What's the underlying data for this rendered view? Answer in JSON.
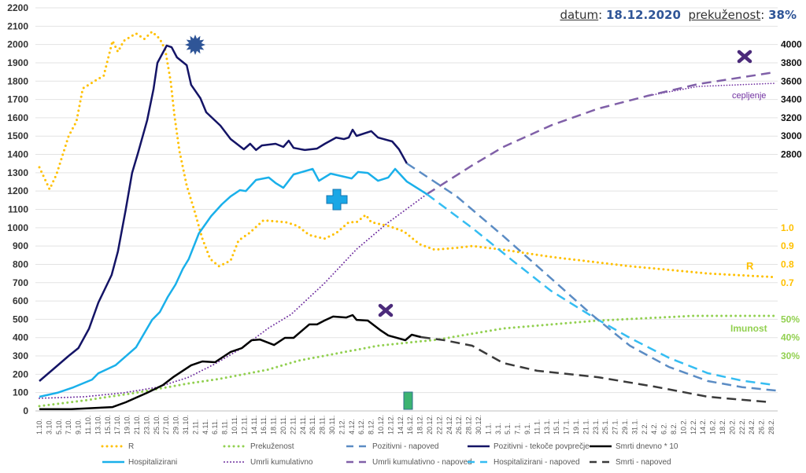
{
  "header": {
    "date_label": "datum",
    "date_value": "18.12.2020",
    "immunity_label": "prekuženost",
    "immunity_value": "38%"
  },
  "chart_data": {
    "type": "line",
    "x_start": "1.10.2020",
    "x_unit": "day index from 1.10.2020",
    "x_labels": [
      "1.10.",
      "3.10.",
      "5.10.",
      "7.10.",
      "9.10.",
      "11.10.",
      "13.10.",
      "15.10.",
      "17.10.",
      "19.10.",
      "21.10.",
      "23.10.",
      "25.10.",
      "27.10.",
      "29.10.",
      "31.10.",
      "2.11.",
      "4.11.",
      "6.11.",
      "8.11.",
      "10.11.",
      "12.11.",
      "14.11.",
      "16.11.",
      "18.11.",
      "20.11.",
      "22.11.",
      "24.11.",
      "26.11.",
      "28.11.",
      "30.11.",
      "2.12.",
      "4.12.",
      "6.12.",
      "8.12.",
      "10.12.",
      "12.12.",
      "14.12.",
      "16.12.",
      "18.12.",
      "20.12.",
      "22.12.",
      "24.12.",
      "26.12.",
      "28.12.",
      "30.12.",
      "1.1.",
      "3.1.",
      "5.1.",
      "7.1.",
      "9.1.",
      "11.1.",
      "13.1.",
      "15.1.",
      "17.1.",
      "19.1.",
      "21.1.",
      "23.1.",
      "25.1.",
      "27.1.",
      "29.1.",
      "31.1.",
      "2.2.",
      "4.2.",
      "6.2.",
      "8.2.",
      "10.2.",
      "12.2.",
      "14.2.",
      "16.2.",
      "18.2.",
      "20.2.",
      "22.2.",
      "24.2.",
      "26.2.",
      "28.2."
    ],
    "xlim": [
      0,
      150
    ],
    "ylim": [
      0,
      2200
    ],
    "grid": true,
    "left_ticks": [
      "0",
      "100",
      "200",
      "300",
      "400",
      "500",
      "600",
      "700",
      "800",
      "900",
      "1000",
      "1100",
      "1200",
      "1300",
      "1400",
      "1500",
      "1600",
      "1700",
      "1800",
      "1900",
      "2000",
      "2100",
      "2200"
    ],
    "right_ticks_deaths": [
      "4000",
      "3800",
      "3600",
      "3400",
      "3200",
      "3000",
      "2800"
    ],
    "right_ticks_r": [
      "1.0",
      "0.9",
      "0.8",
      "0.7"
    ],
    "right_ticks_immunity": [
      "50%",
      "40%",
      "30%"
    ],
    "annotations": {
      "vaccination": "cepljenje",
      "r": "R",
      "immunity": "Imunost"
    },
    "colors": {
      "positive": "#141466",
      "positive_fc": "#5b8cc4",
      "hosp": "#1ab0ea",
      "hosp_fc": "#35bdf2",
      "r": "#ffc000",
      "immunity": "#92d050",
      "deaths": "#000000",
      "deaths_fc": "#3a3a3a",
      "cum": "#7030a0",
      "cum_fc": "#8060a8",
      "title_value": "#2f5597"
    },
    "legend_position": "bottom",
    "series": [
      {
        "key": "r",
        "name": "R",
        "axis": "r",
        "style": "dotted",
        "points": [
          [
            0,
            1.33
          ],
          [
            2.1,
            1.21
          ],
          [
            3.5,
            1.29
          ],
          [
            6,
            1.5
          ],
          [
            7.6,
            1.58
          ],
          [
            8.9,
            1.76
          ],
          [
            11.3,
            1.8
          ],
          [
            13.2,
            1.83
          ],
          [
            15,
            2.02
          ],
          [
            16.1,
            1.96
          ],
          [
            17.3,
            2.02
          ],
          [
            19.8,
            2.06
          ],
          [
            21.5,
            2.03
          ],
          [
            23.1,
            2.07
          ],
          [
            24.7,
            2.03
          ],
          [
            25.8,
            1.97
          ],
          [
            26.9,
            1.8
          ],
          [
            27.7,
            1.61
          ],
          [
            28.7,
            1.42
          ],
          [
            30.2,
            1.23
          ],
          [
            31.8,
            1.09
          ],
          [
            33.4,
            0.94
          ],
          [
            35,
            0.83
          ],
          [
            36.8,
            0.79
          ],
          [
            39.2,
            0.82
          ],
          [
            40.8,
            0.93
          ],
          [
            43,
            0.97
          ],
          [
            45.9,
            1.04
          ],
          [
            50.5,
            1.03
          ],
          [
            52.9,
            1.01
          ],
          [
            55.3,
            0.96
          ],
          [
            58.4,
            0.94
          ],
          [
            60.8,
            0.97
          ],
          [
            63.4,
            1.03
          ],
          [
            65,
            1.03
          ],
          [
            66.9,
            1.07
          ],
          [
            68,
            1.03
          ],
          [
            71.5,
            1.01
          ],
          [
            74.7,
            0.98
          ],
          [
            77.9,
            0.91
          ],
          [
            81,
            0.88
          ],
          [
            85.5,
            0.89
          ],
          [
            88.7,
            0.9
          ],
          [
            95,
            0.88
          ],
          [
            105,
            0.84
          ],
          [
            121,
            0.79
          ],
          [
            137,
            0.75
          ],
          [
            151,
            0.73
          ]
        ]
      },
      {
        "key": "immunity",
        "name": "Prekuženost",
        "axis": "immunity",
        "style": "dotted",
        "points": [
          [
            0,
            2.6
          ],
          [
            9,
            5.6
          ],
          [
            19.8,
            9.9
          ],
          [
            30.6,
            15
          ],
          [
            37.1,
            17.6
          ],
          [
            46.8,
            22.5
          ],
          [
            53.2,
            27.5
          ],
          [
            69.4,
            35.6
          ],
          [
            81.8,
            39
          ],
          [
            85.5,
            40.7
          ],
          [
            95,
            45
          ],
          [
            114.5,
            49.3
          ],
          [
            134,
            51.9
          ],
          [
            151,
            51.9
          ]
        ]
      },
      {
        "key": "positive_fc",
        "name": "Pozitivni - napoved",
        "axis": "left",
        "style": "dashed",
        "points": [
          [
            75.3,
            1351
          ],
          [
            85.5,
            1171
          ],
          [
            95,
            956
          ],
          [
            105,
            720
          ],
          [
            113,
            530
          ],
          [
            121,
            356
          ],
          [
            129,
            240
          ],
          [
            137,
            163
          ],
          [
            144,
            130
          ],
          [
            151,
            111
          ]
        ]
      },
      {
        "key": "positive",
        "name": "Pozitivni - tekoče povprečje",
        "axis": "left",
        "style": "solid",
        "points": [
          [
            0,
            163
          ],
          [
            3.2,
            236
          ],
          [
            6,
            300
          ],
          [
            8,
            343
          ],
          [
            10.2,
            450
          ],
          [
            12.1,
            592
          ],
          [
            14.8,
            742
          ],
          [
            16.1,
            870
          ],
          [
            17.7,
            1098
          ],
          [
            19,
            1299
          ],
          [
            20.2,
            1406
          ],
          [
            22.1,
            1587
          ],
          [
            23.4,
            1758
          ],
          [
            24.2,
            1900
          ],
          [
            26.1,
            1994
          ],
          [
            27.1,
            1985
          ],
          [
            28.2,
            1930
          ],
          [
            30.2,
            1887
          ],
          [
            31.1,
            1780
          ],
          [
            33,
            1707
          ],
          [
            34.2,
            1630
          ],
          [
            37.1,
            1557
          ],
          [
            39.2,
            1484
          ],
          [
            41.9,
            1428
          ],
          [
            43.2,
            1458
          ],
          [
            44.4,
            1424
          ],
          [
            45.6,
            1449
          ],
          [
            48.4,
            1458
          ],
          [
            50,
            1441
          ],
          [
            51.1,
            1475
          ],
          [
            52.1,
            1436
          ],
          [
            54.4,
            1424
          ],
          [
            56.9,
            1432
          ],
          [
            58.5,
            1458
          ],
          [
            60.8,
            1492
          ],
          [
            62.4,
            1484
          ],
          [
            63.4,
            1492
          ],
          [
            64.2,
            1535
          ],
          [
            65,
            1501
          ],
          [
            68,
            1527
          ],
          [
            69.4,
            1492
          ],
          [
            72.3,
            1471
          ],
          [
            73.7,
            1428
          ],
          [
            75.3,
            1351
          ]
        ]
      },
      {
        "key": "deaths",
        "name": "Smrti dnevno * 10",
        "axis": "left",
        "style": "solid",
        "points": [
          [
            0,
            10
          ],
          [
            6.5,
            10
          ],
          [
            15,
            21
          ],
          [
            17.7,
            47
          ],
          [
            22.1,
            99
          ],
          [
            25.3,
            141
          ],
          [
            27.4,
            184
          ],
          [
            31.1,
            249
          ],
          [
            33.4,
            270
          ],
          [
            36,
            266
          ],
          [
            39.2,
            322
          ],
          [
            41.5,
            343
          ],
          [
            43.5,
            386
          ],
          [
            45.2,
            390
          ],
          [
            48.1,
            360
          ],
          [
            50.3,
            399
          ],
          [
            52.1,
            399
          ],
          [
            55.3,
            472
          ],
          [
            56.9,
            472
          ],
          [
            58.4,
            493
          ],
          [
            60.2,
            515
          ],
          [
            62.9,
            510
          ],
          [
            64.2,
            523
          ],
          [
            65,
            497
          ],
          [
            67.3,
            493
          ],
          [
            69.8,
            442
          ],
          [
            71.5,
            412
          ],
          [
            75,
            386
          ],
          [
            76.3,
            416
          ],
          [
            78.2,
            403
          ]
        ]
      },
      {
        "key": "hosp",
        "name": "Hospitalizirani",
        "axis": "left",
        "style": "solid",
        "points": [
          [
            0,
            77
          ],
          [
            3.7,
            99
          ],
          [
            7,
            129
          ],
          [
            10.8,
            171
          ],
          [
            12.1,
            206
          ],
          [
            15.6,
            249
          ],
          [
            19.8,
            347
          ],
          [
            23.1,
            497
          ],
          [
            24.7,
            540
          ],
          [
            26.3,
            622
          ],
          [
            27.9,
            690
          ],
          [
            29.4,
            776
          ],
          [
            30.6,
            828
          ],
          [
            32.7,
            969
          ],
          [
            35.2,
            1063
          ],
          [
            37.4,
            1128
          ],
          [
            39.2,
            1171
          ],
          [
            41.1,
            1205
          ],
          [
            42.3,
            1200
          ],
          [
            44.4,
            1261
          ],
          [
            47,
            1274
          ],
          [
            48.4,
            1244
          ],
          [
            50,
            1218
          ],
          [
            52.1,
            1291
          ],
          [
            56,
            1321
          ],
          [
            57.3,
            1256
          ],
          [
            59.7,
            1295
          ],
          [
            64,
            1269
          ],
          [
            65.3,
            1304
          ],
          [
            67.3,
            1299
          ],
          [
            69.4,
            1256
          ],
          [
            71.5,
            1274
          ],
          [
            72.9,
            1321
          ],
          [
            75.3,
            1252
          ],
          [
            79.4,
            1183
          ]
        ]
      },
      {
        "key": "cum",
        "name": "Umrli kumulativno",
        "axis": "deaths",
        "style": "dotted",
        "points": [
          [
            0,
            138
          ],
          [
            9.2,
            154
          ],
          [
            17.3,
            198
          ],
          [
            24.2,
            258
          ],
          [
            30.6,
            368
          ],
          [
            36,
            514
          ],
          [
            41.5,
            686
          ],
          [
            46.8,
            900
          ],
          [
            51.6,
            1054
          ],
          [
            58.5,
            1398
          ],
          [
            65,
            1766
          ],
          [
            71.5,
            2058
          ],
          [
            79.4,
            2366
          ]
        ]
      },
      {
        "key": "cum_fc",
        "name": "Umrli kumulativno - napoved",
        "axis": "deaths",
        "style": "dashed",
        "points": [
          [
            79.4,
            2366
          ],
          [
            88.7,
            2680
          ],
          [
            95,
            2880
          ],
          [
            105,
            3120
          ],
          [
            114.5,
            3300
          ],
          [
            124.7,
            3440
          ],
          [
            135,
            3568
          ],
          [
            150.5,
            3696
          ]
        ]
      },
      {
        "key": "hosp_fc",
        "name": "Hospitalizirani - napoved",
        "axis": "left",
        "style": "dashed",
        "points": [
          [
            79.4,
            1183
          ],
          [
            88.7,
            999
          ],
          [
            97,
            820
          ],
          [
            104.8,
            656
          ],
          [
            113,
            520
          ],
          [
            121,
            399
          ],
          [
            129,
            290
          ],
          [
            137,
            206
          ],
          [
            144,
            165
          ],
          [
            150.8,
            141
          ]
        ]
      },
      {
        "key": "deaths_fc",
        "name": "Smrti - napoved",
        "axis": "left",
        "style": "dashed",
        "points": [
          [
            78.2,
            403
          ],
          [
            83,
            386
          ],
          [
            88.7,
            356
          ],
          [
            95,
            262
          ],
          [
            102,
            219
          ],
          [
            114.5,
            184
          ],
          [
            126,
            133
          ],
          [
            137,
            77
          ],
          [
            150,
            47
          ]
        ]
      },
      {
        "key": "vacc",
        "name": "cepljenje",
        "axis": "deaths",
        "style": "dotted-thin",
        "points": [
          [
            124.7,
            3440
          ],
          [
            135,
            3542
          ],
          [
            150.5,
            3576
          ]
        ]
      }
    ],
    "legend": [
      {
        "key": "r",
        "label": "R"
      },
      {
        "key": "immunity",
        "label": "Prekuženost"
      },
      {
        "key": "positive_fc",
        "label": "Pozitivni - napoved"
      },
      {
        "key": "positive",
        "label": "Pozitivni - tekoče povprečje"
      },
      {
        "key": "deaths",
        "label": "Smrti dnevno * 10"
      },
      {
        "key": "hosp",
        "label": "Hospitalizirani"
      },
      {
        "key": "cum",
        "label": "Umrli kumulativno"
      },
      {
        "key": "cum_fc",
        "label": "Umrli kumulativno - napoved"
      },
      {
        "key": "hosp_fc",
        "label": "Hospitalizirani - napoved"
      },
      {
        "key": "deaths_fc",
        "label": "Smrti - napoved"
      }
    ]
  }
}
